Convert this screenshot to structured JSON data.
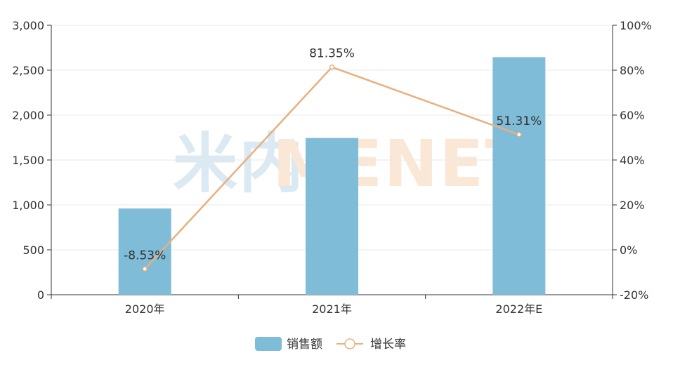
{
  "chart_data": {
    "type": "bar",
    "categories": [
      "2020年",
      "2021年",
      "2022年E"
    ],
    "series": [
      {
        "name": "销售额",
        "type": "bar",
        "axis": "left",
        "values": [
          960,
          1745,
          2645
        ],
        "color": "#7fbcd8"
      },
      {
        "name": "增长率",
        "type": "line",
        "axis": "right",
        "values": [
          -8.53,
          81.35,
          51.31
        ],
        "labels": [
          "-8.53%",
          "81.35%",
          "51.31%"
        ],
        "color": "#e8b07e"
      }
    ],
    "y_left": {
      "ylim": [
        0,
        3000
      ],
      "ticks": [
        0,
        500,
        1000,
        1500,
        2000,
        2500,
        3000
      ],
      "tick_labels": [
        "0",
        "500",
        "1,000",
        "1,500",
        "2,000",
        "2,500",
        "3,000"
      ]
    },
    "y_right": {
      "ylim": [
        -20,
        100
      ],
      "ticks": [
        -20,
        0,
        20,
        40,
        60,
        80,
        100
      ],
      "tick_labels": [
        "-20%",
        "0%",
        "20%",
        "40%",
        "60%",
        "80%",
        "100%"
      ]
    },
    "grid": true,
    "legend": "bottom-center",
    "watermark": "米内MENET",
    "colors": {
      "grid": "#e8e8e8",
      "axis": "#333333",
      "watermark_cn": "#dbe9f2",
      "watermark_en": "#fbe7d6"
    }
  }
}
